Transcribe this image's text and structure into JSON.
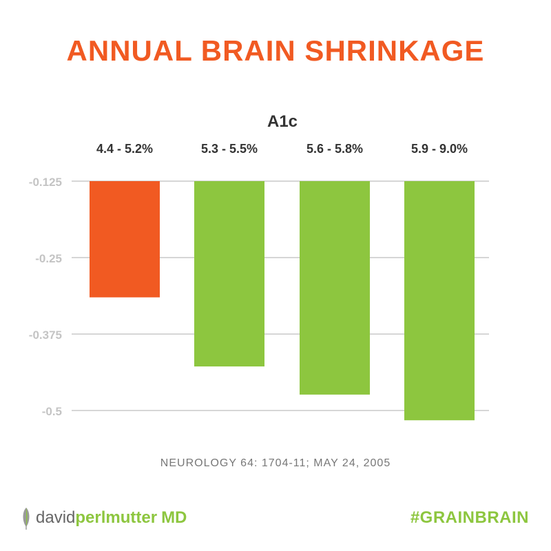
{
  "header": {
    "title": "ANNUAL BRAIN SHRINKAGE"
  },
  "chart_data": {
    "type": "bar",
    "title": "ANNUAL BRAIN SHRINKAGE",
    "group_label": "A1c",
    "categories": [
      "4.4 - 5.2%",
      "5.3 - 5.5%",
      "5.6 - 5.8%",
      "5.9 - 9.0%"
    ],
    "values": [
      -0.315,
      -0.428,
      -0.474,
      -0.516
    ],
    "bar_baseline": -0.125,
    "ylim": [
      -0.54,
      -0.125
    ],
    "y_ticks": [
      -0.125,
      -0.25,
      -0.375,
      -0.5
    ],
    "y_tick_labels": [
      "-0.125",
      "-0.25",
      "-0.375",
      "-0.5"
    ],
    "grid": true,
    "colors": [
      "#f15a22",
      "#8dc63f",
      "#8dc63f",
      "#8dc63f"
    ]
  },
  "footer": {
    "source": "NEUROLOGY 64: 1704-11; MAY 24, 2005",
    "logo_part1": "david",
    "logo_part2": "perlmutter",
    "logo_md": "MD",
    "hashtag": "#GRAINBRAIN"
  }
}
